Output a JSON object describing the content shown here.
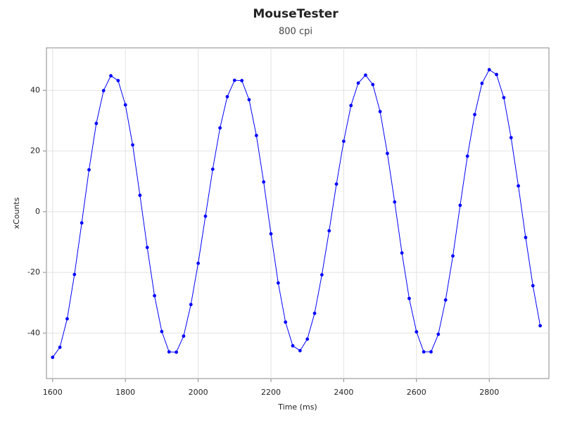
{
  "chart_data": {
    "type": "line",
    "title": "MouseTester",
    "subtitle": "800 cpi",
    "x_label": "Time (ms)",
    "y_label": "xCounts",
    "x": [
      1600,
      1620,
      1640,
      1660,
      1680,
      1700,
      1720,
      1740,
      1760,
      1780,
      1800,
      1820,
      1840,
      1860,
      1880,
      1900,
      1920,
      1940,
      1960,
      1980,
      2000,
      2020,
      2040,
      2060,
      2080,
      2100,
      2120,
      2140,
      2160,
      2180,
      2200,
      2220,
      2240,
      2260,
      2280,
      2300,
      2320,
      2340,
      2360,
      2380,
      2400,
      2420,
      2440,
      2460,
      2480,
      2500,
      2520,
      2540,
      2560,
      2580,
      2600,
      2620,
      2640,
      2660,
      2680,
      2700,
      2720,
      2740,
      2760,
      2780,
      2800,
      2820,
      2840,
      2860,
      2880,
      2900,
      2920,
      2940
    ],
    "series": [
      {
        "color": "#0000ff",
        "markers": true,
        "values": [
          -48,
          -44.7,
          -35.3,
          -20.7,
          -3.7,
          13.8,
          29.1,
          39.9,
          44.8,
          43.2,
          35.2,
          22,
          5.4,
          -11.8,
          -27.7,
          -39.5,
          -46.2,
          -46.3,
          -41,
          -30.6,
          -17,
          -1.5,
          14,
          27.6,
          37.9,
          43.3,
          43.2,
          36.9,
          25.1,
          9.8,
          -7.3,
          -23.5,
          -36.4,
          -44.2,
          -45.8,
          -42,
          -33.5,
          -20.8,
          -6.3,
          9.1,
          23.2,
          35,
          42.4,
          45,
          41.9,
          33,
          19.2,
          3.2,
          -13.6,
          -28.6,
          -39.6,
          -46.2,
          -46.2,
          -40.4,
          -29.1,
          -14.6,
          2.1,
          18.3,
          32,
          42.3,
          46.8,
          45.2,
          37.6,
          24.4,
          8.5,
          -8.5,
          -24.4,
          -37.6
        ]
      }
    ],
    "xlim": [
      1583,
      2964
    ],
    "ylim": [
      -55,
      54
    ],
    "xticks": [
      1600,
      1800,
      2000,
      2200,
      2400,
      2600,
      2800
    ],
    "yticks": [
      -40,
      -20,
      0,
      20,
      40
    ],
    "grid": true
  }
}
